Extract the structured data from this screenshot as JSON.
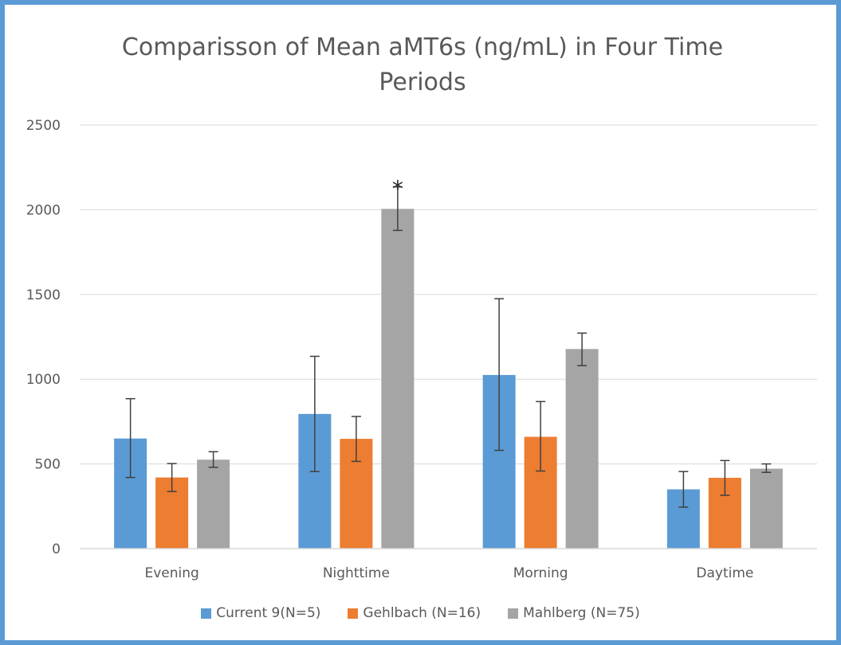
{
  "chart_data": {
    "type": "bar",
    "title": "Comparisson of Mean aMT6s (ng/mL) in Four Time Periods",
    "title_lines": [
      "Comparisson of Mean aMT6s (ng/mL) in Four Time",
      "Periods"
    ],
    "categories": [
      "Evening",
      "Nighttime",
      "Morning",
      "Daytime"
    ],
    "series": [
      {
        "name": "Current 9(N=5)",
        "color": "#5b9bd5",
        "values": [
          650,
          795,
          1025,
          350
        ],
        "err_low": [
          420,
          455,
          580,
          245
        ],
        "err_high": [
          885,
          1135,
          1475,
          455
        ]
      },
      {
        "name": "Gehlbach (N=16)",
        "color": "#ed7d31",
        "values": [
          420,
          648,
          660,
          418
        ],
        "err_low": [
          337,
          515,
          458,
          315
        ],
        "err_high": [
          502,
          780,
          868,
          520
        ]
      },
      {
        "name": "Mahlberg (N=75)",
        "color": "#a5a5a5",
        "values": [
          525,
          2005,
          1178,
          472
        ],
        "err_low": [
          480,
          1878,
          1080,
          450
        ],
        "err_high": [
          572,
          2135,
          1272,
          500
        ]
      }
    ],
    "ylim": [
      0,
      2500
    ],
    "yticks": [
      "0",
      "500",
      "1000",
      "1500",
      "2000",
      "2500"
    ],
    "grid": true,
    "legend_position": "bottom",
    "annotations": [
      {
        "text": "*",
        "category": "Nighttime",
        "series": "Mahlberg (N=75)"
      }
    ]
  }
}
